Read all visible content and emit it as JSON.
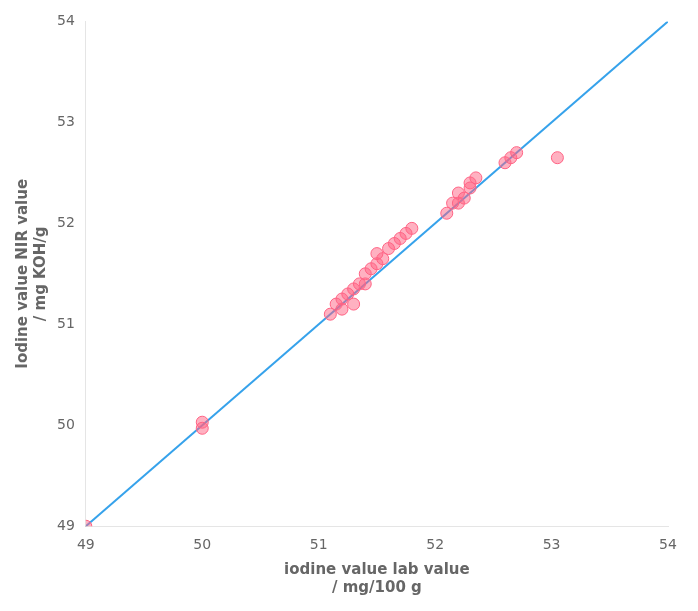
{
  "chart_data": {
    "type": "scatter",
    "xlabel": [
      "iodine value lab value",
      "/ mg/100 g"
    ],
    "ylabel": [
      "Iodine value NIR value",
      "/ mg KOH/g"
    ],
    "series": [
      {
        "type": "line",
        "x": [
          49,
          54
        ],
        "values": [
          49,
          54
        ]
      },
      {
        "type": "scatter",
        "x": [
          49.0,
          50.0,
          50.0,
          51.1,
          51.15,
          51.2,
          51.2,
          51.25,
          51.3,
          51.3,
          51.35,
          51.4,
          51.4,
          51.45,
          51.5,
          51.5,
          51.55,
          51.6,
          51.65,
          51.7,
          51.75,
          51.8,
          52.1,
          52.15,
          52.2,
          52.2,
          52.25,
          52.3,
          52.3,
          52.35,
          52.6,
          52.65,
          52.7,
          53.05
        ],
        "values": [
          49.0,
          49.97,
          50.03,
          51.1,
          51.2,
          51.15,
          51.25,
          51.3,
          51.2,
          51.35,
          51.4,
          51.5,
          51.4,
          51.55,
          51.6,
          51.7,
          51.65,
          51.75,
          51.8,
          51.85,
          51.9,
          51.95,
          52.1,
          52.2,
          52.2,
          52.3,
          52.25,
          52.35,
          52.4,
          52.45,
          52.6,
          52.65,
          52.7,
          52.65
        ]
      }
    ],
    "xlim": [
      49,
      54
    ],
    "ylim": [
      49,
      54
    ],
    "xticks": [
      49,
      50,
      51,
      52,
      53,
      54
    ],
    "yticks": [
      49,
      50,
      51,
      52,
      53,
      54
    ],
    "grid": false
  }
}
